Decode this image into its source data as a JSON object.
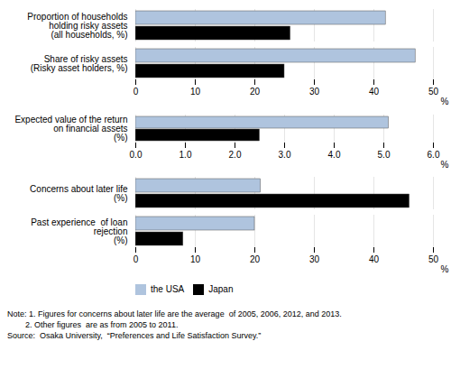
{
  "chart_data": [
    {
      "type": "bar",
      "orientation": "horizontal",
      "categories": [
        "Proportion of households\nholding risky assets\n(all households, %)",
        "Share of risky assets\n(Risky asset holders, %)"
      ],
      "series": [
        {
          "name": "the USA",
          "color": "#afc4de",
          "values": [
            42,
            47
          ]
        },
        {
          "name": "Japan",
          "color": "#000000",
          "values": [
            26,
            25
          ]
        }
      ],
      "xlabel": "%",
      "xlim": [
        0,
        50
      ],
      "xticks": [
        0,
        10,
        20,
        30,
        40,
        50
      ],
      "grid": true
    },
    {
      "type": "bar",
      "orientation": "horizontal",
      "categories": [
        "Expected value of the return\non financial assets\n(%)"
      ],
      "series": [
        {
          "name": "the USA",
          "color": "#afc4de",
          "values": [
            5.1
          ]
        },
        {
          "name": "Japan",
          "color": "#000000",
          "values": [
            2.5
          ]
        }
      ],
      "xlabel": "%",
      "xlim": [
        0,
        6
      ],
      "xticks": [
        0,
        1,
        2,
        3,
        4,
        5,
        6
      ],
      "grid": true
    },
    {
      "type": "bar",
      "orientation": "horizontal",
      "categories": [
        "Concerns about later life\n(%)",
        "Past experience  of loan\nrejection\n(%)"
      ],
      "series": [
        {
          "name": "the USA",
          "color": "#afc4de",
          "values": [
            21,
            20
          ]
        },
        {
          "name": "Japan",
          "color": "#000000",
          "values": [
            46,
            8
          ]
        }
      ],
      "xlabel": "%",
      "xlim": [
        0,
        50
      ],
      "xticks": [
        0,
        10,
        20,
        30,
        40,
        50
      ],
      "grid": true,
      "legend": "bottom",
      "annotations": [
        "Note: 1. Figures for concerns about later life are the average  of 2005, 2006, 2012, and 2013.",
        "        2. Other figures  are as from 2005 to 2011.",
        "Source:  Osaka University,  “Preferences and Life Satisfaction Survey.”"
      ]
    }
  ]
}
